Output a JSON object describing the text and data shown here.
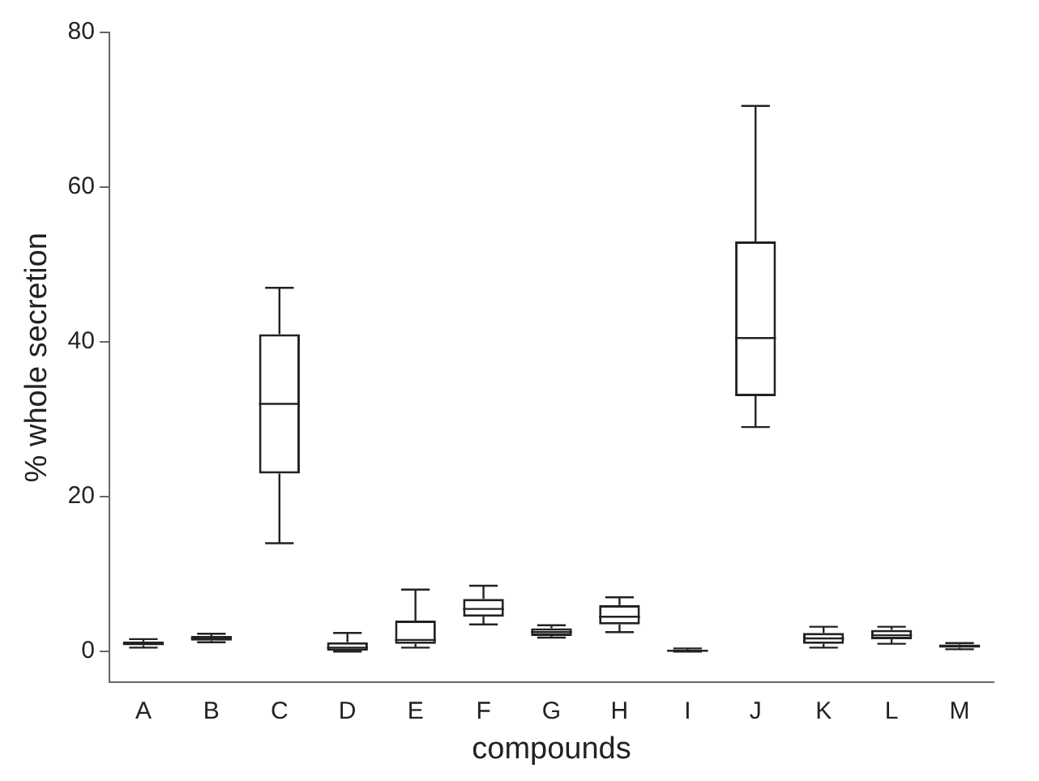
{
  "chart_data": {
    "type": "box",
    "xlabel": "compounds",
    "ylabel": "% whole secretion",
    "categories": [
      "A",
      "B",
      "C",
      "D",
      "E",
      "F",
      "G",
      "H",
      "I",
      "J",
      "K",
      "L",
      "M"
    ],
    "ylim": [
      -4,
      80
    ],
    "yticks": [
      0,
      20,
      40,
      60,
      80
    ],
    "grid": false,
    "legend": false,
    "boxes": [
      {
        "low": 0.5,
        "q1": 0.8,
        "median": 1,
        "q3": 1.3,
        "high": 1.6
      },
      {
        "low": 1.2,
        "q1": 1.4,
        "median": 1.7,
        "q3": 2,
        "high": 2.3
      },
      {
        "low": 14,
        "q1": 23,
        "median": 32,
        "q3": 41,
        "high": 47
      },
      {
        "low": 0,
        "q1": 0,
        "median": 0.5,
        "q3": 1.2,
        "high": 2.4
      },
      {
        "low": 0.5,
        "q1": 1,
        "median": 1.5,
        "q3": 4,
        "high": 8
      },
      {
        "low": 3.5,
        "q1": 4.5,
        "median": 5.5,
        "q3": 6.8,
        "high": 8.5
      },
      {
        "low": 1.8,
        "q1": 2,
        "median": 2.5,
        "q3": 3,
        "high": 3.4
      },
      {
        "low": 2.5,
        "q1": 3.5,
        "median": 4.5,
        "q3": 6,
        "high": 7
      },
      {
        "low": 0,
        "q1": 0,
        "median": 0.1,
        "q3": 0.2,
        "high": 0.4
      },
      {
        "low": 29,
        "q1": 33,
        "median": 40.5,
        "q3": 53,
        "high": 70.5
      },
      {
        "low": 0.5,
        "q1": 1,
        "median": 1.7,
        "q3": 2.4,
        "high": 3.2
      },
      {
        "low": 1,
        "q1": 1.6,
        "median": 2.1,
        "q3": 2.8,
        "high": 3.2
      },
      {
        "low": 0.3,
        "q1": 0.5,
        "median": 0.7,
        "q3": 0.9,
        "high": 1.1
      }
    ]
  }
}
